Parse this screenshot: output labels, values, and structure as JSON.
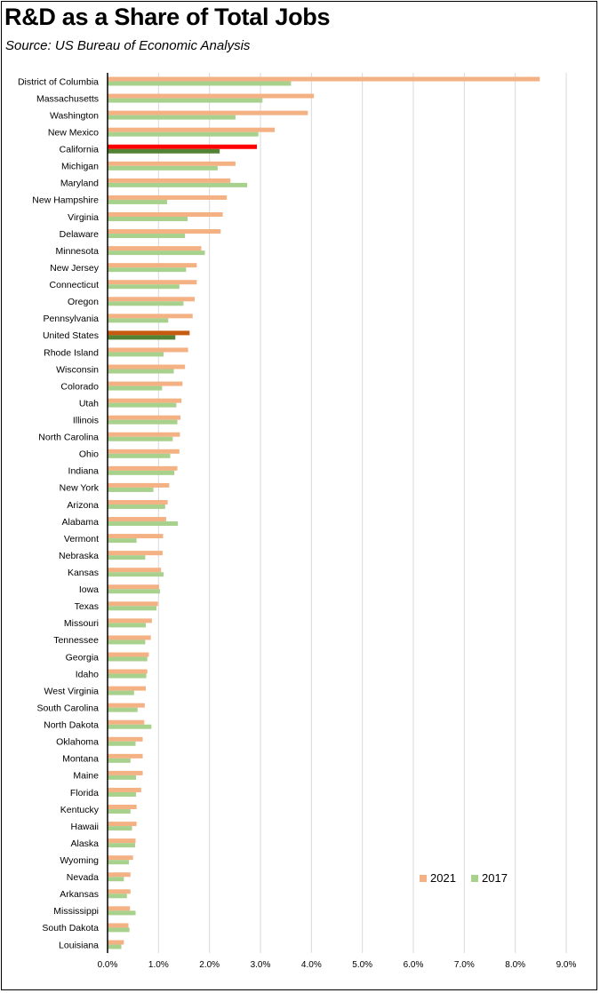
{
  "title": "R&D as a Share of Total Jobs",
  "subtitle": "Source:  US Bureau of Economic Analysis",
  "colors": {
    "s2021": "#F4B183",
    "s2017": "#A9D18E",
    "california2021": "#FF0000",
    "california2017": "#548235",
    "us2021": "#C55A11",
    "us2017": "#548235",
    "grid": "#D9D9D9",
    "axis": "#000000"
  },
  "chart_data": {
    "type": "bar",
    "orientation": "horizontal",
    "categories": [
      "District of Columbia",
      "Massachusetts",
      "Washington",
      "New Mexico",
      "California",
      "Michigan",
      "Maryland",
      "New Hampshire",
      "Virginia",
      "Delaware",
      "Minnesota",
      "New Jersey",
      "Connecticut",
      "Oregon",
      "Pennsylvania",
      "United States",
      "Rhode Island",
      "Wisconsin",
      "Colorado",
      "Utah",
      "Illinois",
      "North Carolina",
      "Ohio",
      "Indiana",
      "New York",
      "Arizona",
      "Alabama",
      "Vermont",
      "Nebraska",
      "Kansas",
      "Iowa",
      "Texas",
      "Missouri",
      "Tennessee",
      "Georgia",
      "Idaho",
      "West Virginia",
      "South Carolina",
      "North Dakota",
      "Oklahoma",
      "Montana",
      "Maine",
      "Florida",
      "Kentucky",
      "Hawaii",
      "Alaska",
      "Wyoming",
      "Nevada",
      "Arkansas",
      "Mississippi",
      "South Dakota",
      "Louisiana"
    ],
    "series": [
      {
        "name": "2021",
        "values": [
          8.48,
          4.05,
          3.93,
          3.28,
          2.93,
          2.51,
          2.41,
          2.34,
          2.26,
          2.22,
          1.84,
          1.75,
          1.75,
          1.71,
          1.67,
          1.61,
          1.58,
          1.52,
          1.47,
          1.45,
          1.43,
          1.42,
          1.41,
          1.37,
          1.21,
          1.18,
          1.15,
          1.09,
          1.08,
          1.05,
          1.01,
          0.99,
          0.87,
          0.85,
          0.81,
          0.78,
          0.75,
          0.73,
          0.72,
          0.69,
          0.69,
          0.69,
          0.66,
          0.57,
          0.57,
          0.55,
          0.5,
          0.45,
          0.45,
          0.44,
          0.41,
          0.32
        ]
      },
      {
        "name": "2017",
        "values": [
          3.6,
          3.04,
          2.51,
          2.96,
          2.2,
          2.16,
          2.74,
          1.17,
          1.57,
          1.52,
          1.91,
          1.54,
          1.41,
          1.49,
          1.19,
          1.33,
          1.1,
          1.3,
          1.07,
          1.35,
          1.37,
          1.28,
          1.23,
          1.31,
          0.9,
          1.13,
          1.38,
          0.57,
          0.74,
          1.1,
          1.03,
          0.96,
          0.75,
          0.74,
          0.78,
          0.76,
          0.52,
          0.59,
          0.86,
          0.55,
          0.45,
          0.56,
          0.56,
          0.45,
          0.48,
          0.54,
          0.42,
          0.32,
          0.38,
          0.55,
          0.43,
          0.27
        ]
      }
    ],
    "highlight": {
      "California": "california",
      "United States": "us"
    },
    "xlim": [
      0,
      9
    ],
    "xticks": [
      "0.0%",
      "1.0%",
      "2.0%",
      "3.0%",
      "4.0%",
      "5.0%",
      "6.0%",
      "7.0%",
      "8.0%",
      "9.0%"
    ],
    "grid": true,
    "legend": {
      "position": "bottom-right",
      "labels": [
        "2021",
        "2017"
      ]
    }
  }
}
